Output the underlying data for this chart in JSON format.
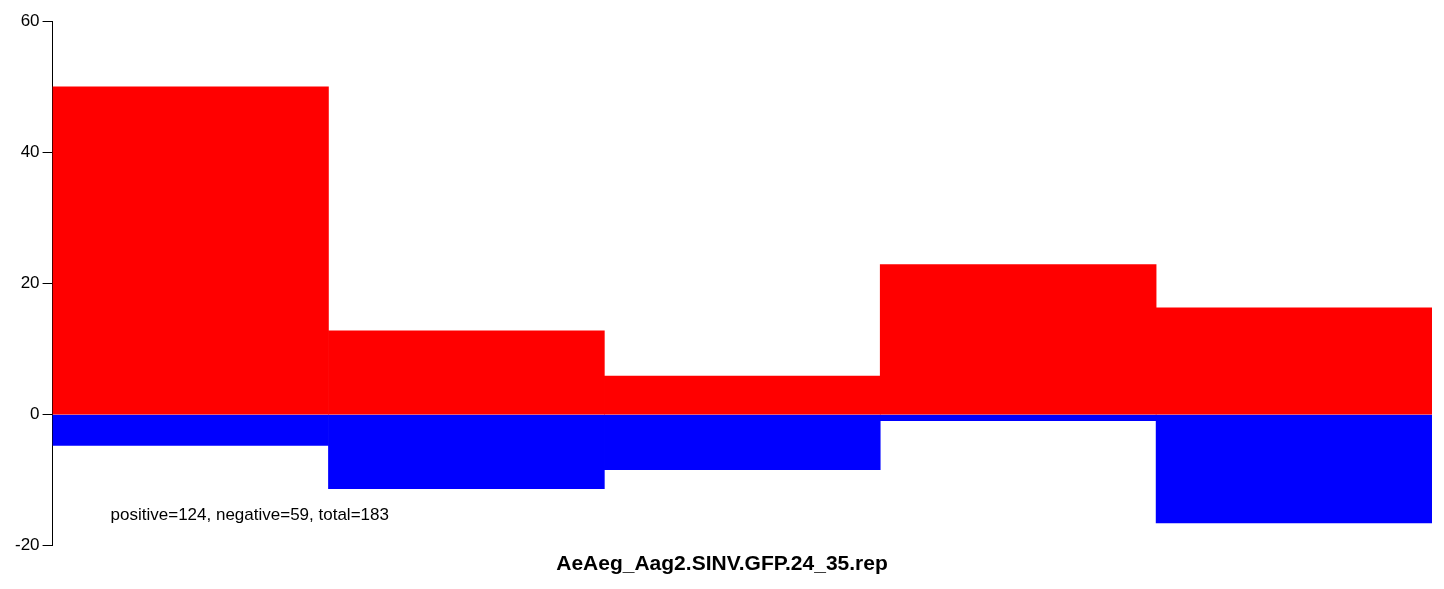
{
  "chart_data": {
    "type": "bar",
    "title": "AeAeg_Aag2.SINV.GFP.24_35.rep",
    "categories": [
      null,
      null,
      null,
      null,
      null
    ],
    "series": [
      {
        "color": "#ff0000",
        "values": [
          50,
          12.8,
          5.9,
          22.9,
          16.3
        ]
      },
      {
        "color": "#0000ff",
        "values": [
          -4.7,
          -11.3,
          -8.4,
          -0.9,
          -16.5
        ]
      }
    ],
    "stacked": true,
    "ylim": [
      -20,
      60
    ],
    "yticks": [
      -20,
      0,
      20,
      40,
      60
    ],
    "grid": false,
    "legend": false,
    "tick_labels": "y",
    "annotations": [
      "positive=124, negative=59, total=183"
    ]
  }
}
